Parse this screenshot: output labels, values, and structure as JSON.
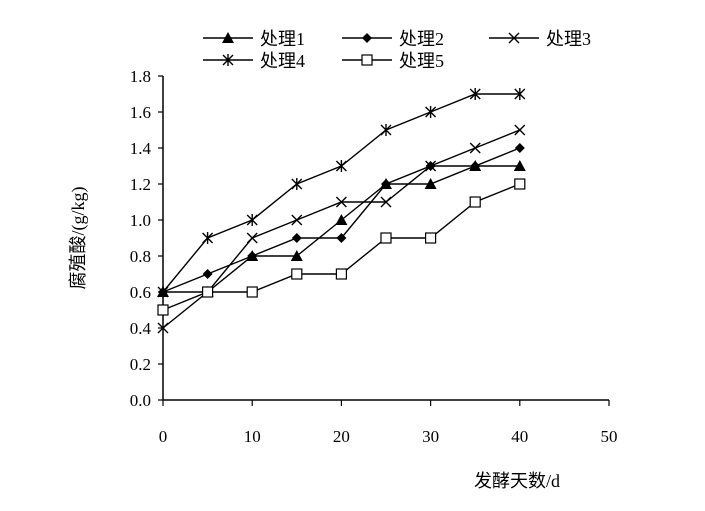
{
  "chart_data": {
    "type": "line",
    "xlabel": "发酵天数/d",
    "ylabel": "腐殖酸/(g/kg)",
    "xlim": [
      0,
      50
    ],
    "ylim": [
      0,
      1.8
    ],
    "x_ticks": [
      "0",
      "10",
      "20",
      "30",
      "40",
      "50"
    ],
    "y_ticks": [
      "0.0",
      "0.2",
      "0.4",
      "0.6",
      "0.8",
      "1.0",
      "1.2",
      "1.4",
      "1.6",
      "1.8"
    ],
    "grid": false,
    "legend_position": "top",
    "x": [
      0,
      5,
      10,
      15,
      20,
      25,
      30,
      35,
      40
    ],
    "series": [
      {
        "name": "处理1",
        "marker": "triangle",
        "values": [
          0.6,
          0.6,
          0.8,
          0.8,
          1.0,
          1.2,
          1.2,
          1.3,
          1.3
        ]
      },
      {
        "name": "处理2",
        "marker": "diamond",
        "values": [
          0.6,
          0.7,
          0.8,
          0.9,
          0.9,
          1.2,
          1.3,
          1.3,
          1.4
        ]
      },
      {
        "name": "处理3",
        "marker": "x",
        "values": [
          0.4,
          0.6,
          0.9,
          1.0,
          1.1,
          1.1,
          1.3,
          1.4,
          1.5
        ]
      },
      {
        "name": "处理4",
        "marker": "asterisk",
        "values": [
          0.6,
          0.9,
          1.0,
          1.2,
          1.3,
          1.5,
          1.6,
          1.7,
          1.7
        ]
      },
      {
        "name": "处理5",
        "marker": "square",
        "values": [
          0.5,
          0.6,
          0.6,
          0.7,
          0.7,
          0.9,
          0.9,
          1.1,
          1.2
        ]
      }
    ],
    "colors": {
      "line": "#000000",
      "background": "#ffffff"
    }
  }
}
